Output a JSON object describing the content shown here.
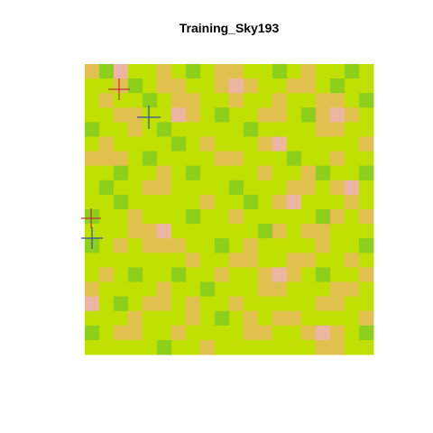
{
  "chart_data": {
    "type": "heatmap",
    "title": "Training_Sky193",
    "colors": [
      "#3fae3a",
      "#8ccf1c",
      "#bfe000",
      "#e2c050",
      "#eeb4a4"
    ],
    "z": [
      [
        3,
        1,
        4,
        2,
        2,
        3,
        2,
        1,
        2,
        3,
        3,
        2,
        2,
        1,
        2,
        3,
        2,
        2,
        1,
        2
      ],
      [
        2,
        2,
        3,
        1,
        2,
        3,
        3,
        2,
        2,
        3,
        4,
        3,
        2,
        2,
        3,
        3,
        2,
        1,
        2,
        2
      ],
      [
        2,
        3,
        2,
        2,
        1,
        2,
        3,
        3,
        2,
        2,
        3,
        2,
        2,
        3,
        2,
        2,
        3,
        3,
        2,
        1
      ],
      [
        2,
        2,
        3,
        3,
        2,
        2,
        4,
        3,
        2,
        1,
        2,
        2,
        3,
        3,
        2,
        1,
        3,
        4,
        3,
        2
      ],
      [
        1,
        2,
        2,
        3,
        2,
        1,
        2,
        2,
        2,
        2,
        2,
        1,
        2,
        2,
        2,
        2,
        3,
        3,
        2,
        2
      ],
      [
        2,
        3,
        2,
        2,
        2,
        2,
        1,
        2,
        3,
        2,
        2,
        2,
        3,
        4,
        2,
        2,
        2,
        2,
        2,
        3
      ],
      [
        3,
        3,
        3,
        2,
        1,
        2,
        2,
        2,
        2,
        3,
        3,
        2,
        2,
        2,
        1,
        2,
        2,
        3,
        2,
        2
      ],
      [
        2,
        2,
        1,
        2,
        2,
        3,
        2,
        1,
        2,
        2,
        2,
        2,
        3,
        2,
        2,
        3,
        1,
        2,
        2,
        1
      ],
      [
        2,
        1,
        2,
        2,
        3,
        3,
        2,
        2,
        2,
        2,
        1,
        2,
        2,
        2,
        3,
        3,
        2,
        3,
        4,
        2
      ],
      [
        2,
        2,
        1,
        2,
        2,
        2,
        2,
        2,
        3,
        2,
        2,
        1,
        2,
        3,
        4,
        2,
        2,
        2,
        3,
        2
      ],
      [
        1,
        2,
        2,
        3,
        2,
        2,
        2,
        1,
        2,
        2,
        3,
        2,
        2,
        2,
        2,
        2,
        1,
        3,
        2,
        3
      ],
      [
        2,
        2,
        2,
        3,
        3,
        4,
        2,
        2,
        2,
        2,
        2,
        2,
        1,
        3,
        2,
        3,
        3,
        2,
        2,
        2
      ],
      [
        1,
        2,
        3,
        2,
        3,
        3,
        3,
        2,
        2,
        1,
        2,
        3,
        2,
        2,
        2,
        2,
        3,
        2,
        2,
        1
      ],
      [
        2,
        2,
        2,
        2,
        2,
        2,
        2,
        3,
        2,
        2,
        3,
        3,
        2,
        2,
        3,
        3,
        2,
        2,
        3,
        2
      ],
      [
        2,
        3,
        2,
        1,
        2,
        2,
        1,
        2,
        2,
        3,
        2,
        2,
        3,
        4,
        3,
        2,
        1,
        2,
        2,
        3
      ],
      [
        3,
        2,
        2,
        2,
        2,
        3,
        2,
        2,
        1,
        2,
        2,
        2,
        3,
        3,
        2,
        2,
        2,
        3,
        3,
        2
      ],
      [
        4,
        2,
        1,
        2,
        3,
        3,
        2,
        3,
        2,
        2,
        3,
        2,
        2,
        2,
        2,
        2,
        3,
        3,
        2,
        2
      ],
      [
        2,
        2,
        2,
        3,
        2,
        2,
        2,
        3,
        2,
        1,
        2,
        3,
        2,
        3,
        3,
        2,
        2,
        2,
        2,
        3
      ],
      [
        1,
        2,
        3,
        3,
        2,
        2,
        3,
        2,
        2,
        2,
        2,
        3,
        3,
        2,
        2,
        3,
        4,
        3,
        2,
        1
      ],
      [
        2,
        2,
        2,
        2,
        2,
        1,
        2,
        2,
        3,
        2,
        2,
        2,
        2,
        2,
        2,
        2,
        3,
        3,
        2,
        2
      ]
    ]
  }
}
